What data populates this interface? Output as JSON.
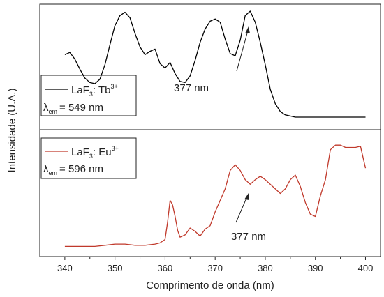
{
  "chart_data": [
    {
      "type": "line",
      "panel": "top",
      "color": "#000000",
      "legend": {
        "prefix": "LaF",
        "sub": "3",
        "mid": ": Tb",
        "sup": "3+"
      },
      "lambda": {
        "symbol": "λ",
        "sub": "em",
        "value": "= 549 nm"
      },
      "annotation": {
        "text": "377 nm",
        "points_to_x": 377
      },
      "xlim": [
        335,
        403
      ],
      "ylim": [
        0,
        1
      ],
      "x": [
        340,
        341,
        342,
        343,
        344,
        345,
        346,
        347,
        348,
        349,
        350,
        351,
        352,
        353,
        354,
        355,
        356,
        357,
        358,
        359,
        360,
        361,
        362,
        363,
        364,
        365,
        366,
        367,
        368,
        369,
        370,
        371,
        372,
        373,
        374,
        375,
        376,
        377,
        378,
        379,
        380,
        381,
        382,
        383,
        384,
        385,
        386,
        387,
        388,
        389,
        390,
        391,
        392,
        393,
        394,
        395,
        396,
        397,
        398,
        399,
        400
      ],
      "y": [
        0.61,
        0.63,
        0.57,
        0.48,
        0.4,
        0.36,
        0.35,
        0.39,
        0.52,
        0.7,
        0.87,
        0.96,
        0.99,
        0.94,
        0.8,
        0.68,
        0.61,
        0.64,
        0.66,
        0.53,
        0.49,
        0.54,
        0.44,
        0.37,
        0.36,
        0.42,
        0.56,
        0.72,
        0.84,
        0.91,
        0.93,
        0.9,
        0.75,
        0.62,
        0.6,
        0.74,
        0.96,
        1.0,
        0.9,
        0.72,
        0.52,
        0.3,
        0.17,
        0.1,
        0.07,
        0.06,
        0.05,
        0.05,
        0.05,
        0.05,
        0.05,
        0.05,
        0.05,
        0.05,
        0.05,
        0.05,
        0.05,
        0.05,
        0.05,
        0.05,
        0.05
      ]
    },
    {
      "type": "line",
      "panel": "bottom",
      "color": "#c0392b",
      "legend": {
        "prefix": "LaF",
        "sub": "3",
        "mid": ": Eu",
        "sup": "3+"
      },
      "lambda": {
        "symbol": "λ",
        "sub": "em",
        "value": "= 596 nm"
      },
      "annotation": {
        "text": "377 nm",
        "points_to_x": 377
      },
      "xlim": [
        335,
        403
      ],
      "ylim": [
        0,
        1
      ],
      "x": [
        340,
        342,
        344,
        346,
        348,
        350,
        352,
        354,
        356,
        358,
        359,
        360,
        360.5,
        361,
        361.5,
        362,
        362.5,
        363,
        364,
        365,
        366,
        367,
        368,
        369,
        370,
        371,
        372,
        373,
        374,
        375,
        376,
        377,
        378,
        379,
        380,
        381,
        382,
        383,
        384,
        385,
        386,
        387,
        388,
        389,
        390,
        391,
        392,
        393,
        394,
        395,
        396,
        397,
        398,
        399,
        400
      ],
      "y": [
        0.04,
        0.04,
        0.04,
        0.04,
        0.05,
        0.06,
        0.06,
        0.05,
        0.05,
        0.06,
        0.07,
        0.1,
        0.25,
        0.44,
        0.4,
        0.3,
        0.18,
        0.12,
        0.14,
        0.2,
        0.17,
        0.13,
        0.19,
        0.22,
        0.34,
        0.44,
        0.54,
        0.7,
        0.75,
        0.7,
        0.62,
        0.58,
        0.62,
        0.65,
        0.62,
        0.58,
        0.54,
        0.5,
        0.54,
        0.62,
        0.66,
        0.56,
        0.42,
        0.32,
        0.3,
        0.48,
        0.62,
        0.88,
        0.92,
        0.92,
        0.9,
        0.9,
        0.9,
        0.91,
        0.72
      ]
    }
  ],
  "axes": {
    "xlabel": "Comprimento de onda (nm)",
    "ylabel": "Intensidade (U.A.)",
    "xticks": [
      340,
      350,
      360,
      370,
      380,
      390,
      400
    ]
  }
}
